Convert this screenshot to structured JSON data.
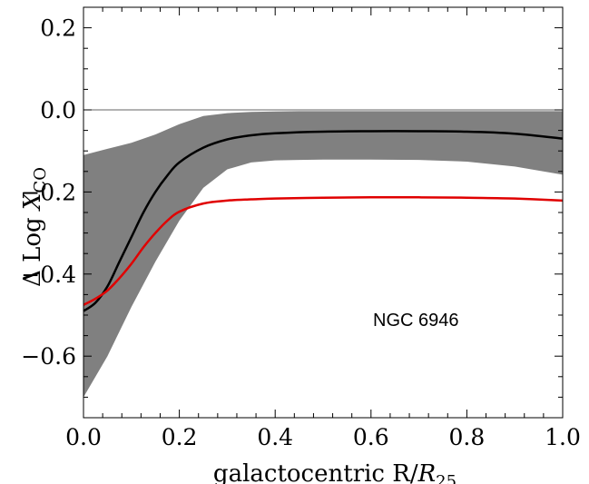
{
  "chart_data": {
    "type": "line",
    "xlabel_parts": [
      "galactocentric R/",
      "R",
      "25"
    ],
    "ylabel_parts": [
      "Δ Log ",
      "X",
      "CO"
    ],
    "annotation": "NGC 6946",
    "xlim": [
      0.0,
      1.0
    ],
    "ylim": [
      -0.75,
      0.25
    ],
    "x_ticks": [
      0.0,
      0.2,
      0.4,
      0.6,
      0.8,
      1.0
    ],
    "x_tick_labels": [
      "0.0",
      "0.2",
      "0.4",
      "0.6",
      "0.8",
      "1.0"
    ],
    "y_ticks": [
      0.2,
      0.0,
      -0.2,
      -0.4,
      -0.6
    ],
    "y_tick_labels": [
      "0.2",
      "0.0",
      "−0.2",
      "−0.4",
      "−0.6"
    ],
    "reference_line_y": 0.0,
    "grid": false,
    "band": {
      "color": "#808080",
      "x": [
        0.0,
        0.05,
        0.1,
        0.15,
        0.2,
        0.25,
        0.3,
        0.35,
        0.4,
        0.45,
        0.5,
        0.6,
        0.7,
        0.8,
        0.9,
        1.0
      ],
      "upper": [
        -0.11,
        -0.095,
        -0.08,
        -0.06,
        -0.035,
        -0.015,
        -0.008,
        -0.005,
        -0.004,
        -0.003,
        -0.003,
        -0.003,
        -0.003,
        -0.003,
        -0.003,
        -0.003
      ],
      "lower": [
        -0.7,
        -0.6,
        -0.48,
        -0.37,
        -0.27,
        -0.19,
        -0.145,
        -0.128,
        -0.123,
        -0.122,
        -0.121,
        -0.121,
        -0.122,
        -0.126,
        -0.138,
        -0.158
      ]
    },
    "series": [
      {
        "color": "#000000",
        "x": [
          0.0,
          0.025,
          0.05,
          0.075,
          0.1,
          0.125,
          0.15,
          0.175,
          0.2,
          0.25,
          0.3,
          0.35,
          0.4,
          0.5,
          0.6,
          0.7,
          0.8,
          0.9,
          1.0
        ],
        "values": [
          -0.49,
          -0.47,
          -0.43,
          -0.37,
          -0.31,
          -0.25,
          -0.2,
          -0.16,
          -0.128,
          -0.092,
          -0.072,
          -0.062,
          -0.057,
          -0.053,
          -0.052,
          -0.052,
          -0.053,
          -0.058,
          -0.07
        ]
      },
      {
        "color": "#e00000",
        "x": [
          0.0,
          0.025,
          0.05,
          0.075,
          0.1,
          0.125,
          0.15,
          0.175,
          0.2,
          0.25,
          0.3,
          0.35,
          0.4,
          0.5,
          0.6,
          0.7,
          0.8,
          0.9,
          1.0
        ],
        "values": [
          -0.475,
          -0.46,
          -0.44,
          -0.41,
          -0.375,
          -0.335,
          -0.3,
          -0.27,
          -0.248,
          -0.228,
          -0.221,
          -0.218,
          -0.216,
          -0.214,
          -0.213,
          -0.213,
          -0.214,
          -0.216,
          -0.221
        ]
      }
    ]
  }
}
